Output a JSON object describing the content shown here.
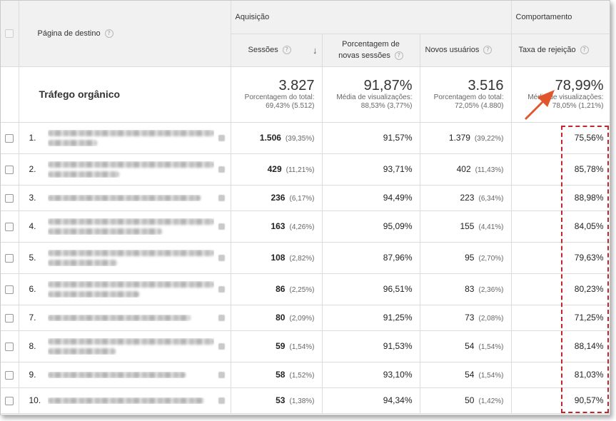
{
  "header": {
    "page_col": "Página de destino",
    "group_acquisition": "Aquisição",
    "group_behavior": "Comportamento",
    "sessions": "Sessões",
    "new_sessions_pct": [
      "Porcentagem de",
      "novas sessões"
    ],
    "new_users": "Novos usuários",
    "bounce_rate": "Taxa de rejeição",
    "help_glyph": "?"
  },
  "totals": {
    "label": "Tráfego orgânico",
    "sessions": {
      "value": "3.827",
      "line1": "Porcentagem do total:",
      "line2": "69,43% (5.512)"
    },
    "new_sessions": {
      "value": "91,87%",
      "line1": "Média de visualizações:",
      "line2": "88,53% (3,77%)"
    },
    "new_users": {
      "value": "3.516",
      "line1": "Porcentagem do total:",
      "line2": "72,05% (4.880)"
    },
    "bounce": {
      "value": "78,99%",
      "line1": "Média de visualizações:",
      "line2": "78,05% (1,21%)"
    }
  },
  "rows": [
    {
      "n": "1.",
      "sessions": "1.506",
      "sessions_pct": "(39,35%)",
      "new_sessions": "91,57%",
      "new_users": "1.379",
      "new_users_pct": "(39,22%)",
      "bounce": "75,56%"
    },
    {
      "n": "2.",
      "sessions": "429",
      "sessions_pct": "(11,21%)",
      "new_sessions": "93,71%",
      "new_users": "402",
      "new_users_pct": "(11,43%)",
      "bounce": "85,78%"
    },
    {
      "n": "3.",
      "sessions": "236",
      "sessions_pct": "(6,17%)",
      "new_sessions": "94,49%",
      "new_users": "223",
      "new_users_pct": "(6,34%)",
      "bounce": "88,98%"
    },
    {
      "n": "4.",
      "sessions": "163",
      "sessions_pct": "(4,26%)",
      "new_sessions": "95,09%",
      "new_users": "155",
      "new_users_pct": "(4,41%)",
      "bounce": "84,05%"
    },
    {
      "n": "5.",
      "sessions": "108",
      "sessions_pct": "(2,82%)",
      "new_sessions": "87,96%",
      "new_users": "95",
      "new_users_pct": "(2,70%)",
      "bounce": "79,63%"
    },
    {
      "n": "6.",
      "sessions": "86",
      "sessions_pct": "(2,25%)",
      "new_sessions": "96,51%",
      "new_users": "83",
      "new_users_pct": "(2,36%)",
      "bounce": "80,23%"
    },
    {
      "n": "7.",
      "sessions": "80",
      "sessions_pct": "(2,09%)",
      "new_sessions": "91,25%",
      "new_users": "73",
      "new_users_pct": "(2,08%)",
      "bounce": "71,25%"
    },
    {
      "n": "8.",
      "sessions": "59",
      "sessions_pct": "(1,54%)",
      "new_sessions": "91,53%",
      "new_users": "54",
      "new_users_pct": "(1,54%)",
      "bounce": "88,14%"
    },
    {
      "n": "9.",
      "sessions": "58",
      "sessions_pct": "(1,52%)",
      "new_sessions": "93,10%",
      "new_users": "54",
      "new_users_pct": "(1,54%)",
      "bounce": "81,03%"
    },
    {
      "n": "10.",
      "sessions": "53",
      "sessions_pct": "(1,38%)",
      "new_sessions": "94,34%",
      "new_users": "50",
      "new_users_pct": "(1,42%)",
      "bounce": "90,57%"
    }
  ],
  "colors": {
    "highlight": "#c0262c",
    "arrow": "#e0552b"
  }
}
